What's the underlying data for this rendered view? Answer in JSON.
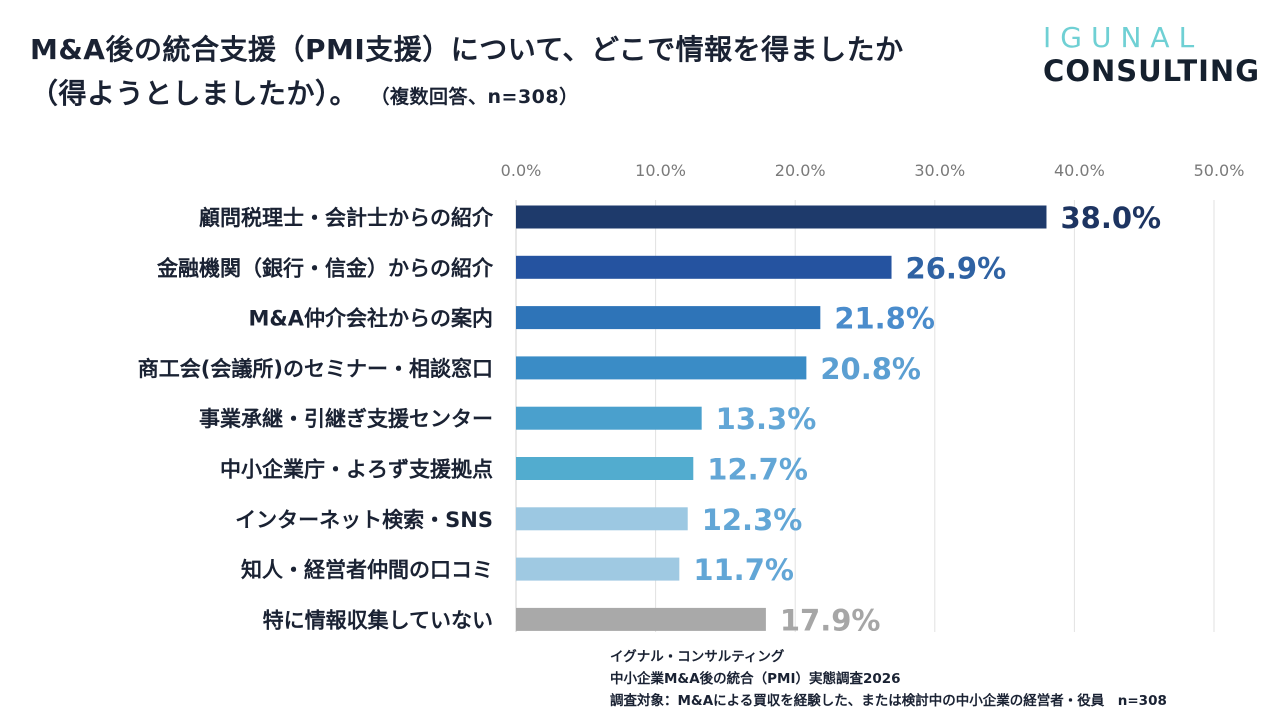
{
  "header": {
    "title_line1": "M&A後の統合支援（PMI支援）について、どこで情報を得ましたか",
    "title_line2": "（得ようとしましたか）。",
    "subtitle": "（複数回答、n=308）"
  },
  "logo": {
    "line1": "IGUNAL",
    "line2": "CONSULTING",
    "line1_color": "#6fd0d4",
    "line2_color": "#15202e"
  },
  "footer": {
    "line1": "イグナル・コンサルティング",
    "line2": "中小企業M&A後の統合（PMI）実態調査2026",
    "line3": "調査対象：M&Aによる買収を経験した、または検討中の中小企業の経営者・役員　n=308"
  },
  "chart_data": {
    "type": "bar",
    "orientation": "horizontal",
    "title": "M&A後の統合支援（PMI支援）について、どこで情報を得ましたか（得ようとしましたか）。",
    "xlabel": "",
    "ylabel": "",
    "xlim": [
      0,
      50
    ],
    "grid": true,
    "legend": "none",
    "x_ticks": [
      "0.0%",
      "10.0%",
      "20.0%",
      "30.0%",
      "40.0%",
      "50.0%"
    ],
    "x_tick_values": [
      0,
      10,
      20,
      30,
      40,
      50
    ],
    "categories": [
      "顧問税理士・会計士からの紹介",
      "金融機関（銀行・信金）からの紹介",
      "M&A仲介会社からの案内",
      "商工会(会議所)のセミナー・相談窓口",
      "事業承継・引継ぎ支援センター",
      "中小企業庁・よろず支援拠点",
      "インターネット検索・SNS",
      "知人・経営者仲間の口コミ",
      "特に情報収集していない"
    ],
    "values": [
      38.0,
      26.9,
      21.8,
      20.8,
      13.3,
      12.7,
      12.3,
      11.7,
      17.9
    ],
    "value_labels": [
      "38.0%",
      "26.9%",
      "21.8%",
      "20.8%",
      "13.3%",
      "12.7%",
      "12.3%",
      "11.7%",
      "17.9%"
    ],
    "bar_colors": [
      "#1e3a6b",
      "#2553a0",
      "#2e74b8",
      "#3a8cc6",
      "#4aa0cd",
      "#52accf",
      "#9cc8e2",
      "#9fc9e2",
      "#a9a9a9"
    ],
    "label_colors": [
      "#1d3461",
      "#2f62a3",
      "#4a8ccc",
      "#5b9fd2",
      "#62a6d6",
      "#62a6d6",
      "#62a6d6",
      "#62a6d6",
      "#a6a6a6"
    ]
  }
}
